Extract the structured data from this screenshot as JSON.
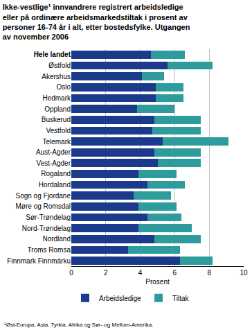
{
  "chart_data": {
    "type": "bar",
    "title": "Ikke-vestlige¹ innvandrere registrert arbeidsledige eller på ordinære arbeidsmarkedstiltak i prosent av personer 16-74 år i alt, etter bostedsfylke. Utgangen av november 2006",
    "footnote": "¹Øst-Europa, Asia, Tyrkia, Afrika og Sør- og Mellom-Amerika.",
    "x_label": "Prosent",
    "orientation": "horizontal",
    "stacked": true,
    "grid": true,
    "legend": "bottom",
    "categories": [
      "Hele landet",
      "Østfold",
      "Akershus",
      "Oslo",
      "Hedmark",
      "Oppland",
      "Buskerud",
      "Vestfold",
      "Telemark",
      "Aust-Agder",
      "Vest-Agder",
      "Rogaland",
      "Hordaland",
      "Sogn og Fjordane",
      "Møre og Romsdal",
      "Sør-Trøndelag",
      "Nord-Trøndelag",
      "Nordland",
      "Troms Romsa",
      "Finnmark Finnmárku"
    ],
    "series": [
      {
        "name": "Arbeidsledige",
        "color": "#1b3a8c",
        "values": [
          4.6,
          5.6,
          4.1,
          4.9,
          4.9,
          3.8,
          4.8,
          4.7,
          5.3,
          4.8,
          5.0,
          3.9,
          4.4,
          3.6,
          3.9,
          4.4,
          3.9,
          4.8,
          3.3,
          6.3
        ]
      },
      {
        "name": "Tiltak",
        "color": "#2e9c9c",
        "values": [
          2.0,
          2.6,
          1.3,
          1.6,
          1.6,
          2.2,
          2.7,
          2.8,
          3.8,
          2.7,
          2.5,
          2.2,
          2.2,
          2.2,
          2.2,
          2.0,
          3.1,
          2.7,
          3.0,
          1.9
        ]
      }
    ],
    "xlim": [
      0,
      10
    ],
    "xticks": [
      0,
      2,
      4,
      6,
      8,
      10
    ]
  }
}
